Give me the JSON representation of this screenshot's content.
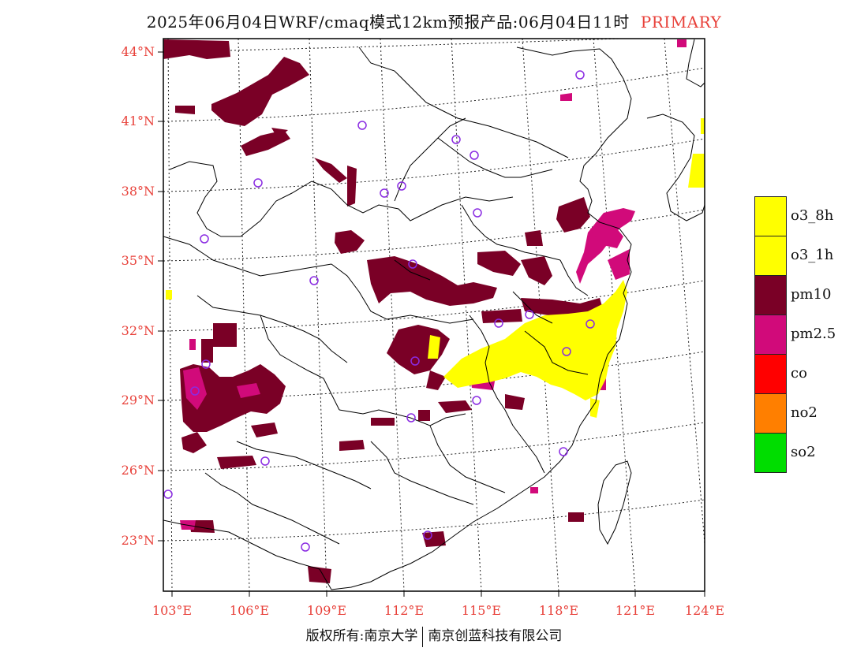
{
  "title": {
    "main": "2025年06月04日WRF/cmaq模式12km预报产品:06月04日11时",
    "tag": "PRIMARY"
  },
  "lat_labels": [
    "44°N",
    "41°N",
    "38°N",
    "35°N",
    "32°N",
    "29°N",
    "26°N",
    "23°N"
  ],
  "lon_labels": [
    "103°E",
    "106°E",
    "109°E",
    "112°E",
    "115°E",
    "118°E",
    "121°E",
    "124°E"
  ],
  "legend": [
    {
      "label": "o3_8h",
      "color": "#ffff00"
    },
    {
      "label": "o3_1h",
      "color": "#ffff00"
    },
    {
      "label": "pm10",
      "color": "#7a0026"
    },
    {
      "label": "pm2.5",
      "color": "#d10a7a"
    },
    {
      "label": "co",
      "color": "#ff0000"
    },
    {
      "label": "no2",
      "color": "#ff7f00"
    },
    {
      "label": "so2",
      "color": "#00dd00"
    }
  ],
  "footer": {
    "left": "版权所有:南京大学",
    "right": "南京创蓝科技有限公司"
  },
  "colors": {
    "label_red": "#e8413a",
    "pm10": "#7a0026",
    "pm25": "#d10a7a",
    "o3": "#ffff00",
    "station": "#8a2be2"
  }
}
